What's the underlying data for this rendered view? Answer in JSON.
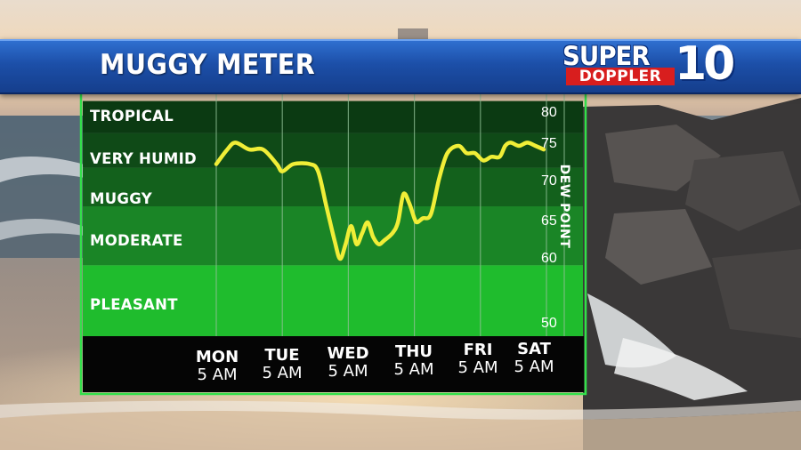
{
  "banner": {
    "title": "MUGGY METER"
  },
  "logo": {
    "word1": "SUPER",
    "word2": "DOPPLER",
    "number": "10"
  },
  "colors": {
    "band_tropical": "#0b3a12",
    "band_very_humid": "#0f4a17",
    "band_muggy": "#13611c",
    "band_moderate": "#1a8526",
    "band_pleasant": "#1fbc2d",
    "border": "#33e04a",
    "line": "#f0ee37",
    "banner": "#1c4fa8",
    "bottom_bar": "#050505"
  },
  "chart_data": {
    "type": "line",
    "ylabel": "DEW POINT",
    "y_ticks": [
      "80",
      "75",
      "70",
      "65",
      "60",
      "50"
    ],
    "ylim": [
      47,
      82
    ],
    "categories_bands": [
      {
        "label": "TROPICAL",
        "from": 77,
        "to": 82
      },
      {
        "label": "VERY HUMID",
        "from": 72,
        "to": 77
      },
      {
        "label": "MUGGY",
        "from": 67,
        "to": 72
      },
      {
        "label": "MODERATE",
        "from": 59,
        "to": 67
      },
      {
        "label": "PLEASANT",
        "from": 47,
        "to": 59
      }
    ],
    "x_ticks": [
      {
        "day": "MON",
        "time": "5 AM",
        "t": 0
      },
      {
        "day": "TUE",
        "time": "5 AM",
        "t": 24
      },
      {
        "day": "WED",
        "time": "5 AM",
        "t": 48
      },
      {
        "day": "THU",
        "time": "5 AM",
        "t": 72
      },
      {
        "day": "FRI",
        "time": "5 AM",
        "t": 96
      },
      {
        "day": "SAT",
        "time": "5 AM",
        "t": 120
      }
    ],
    "series": [
      {
        "x": [
          0,
          4,
          7,
          12,
          17,
          22,
          24,
          28,
          34,
          37,
          40,
          43,
          45,
          47,
          49,
          51,
          53,
          55,
          57,
          59,
          61,
          64,
          66,
          68,
          70,
          72,
          73,
          75,
          78,
          81,
          84,
          88,
          91,
          94,
          97,
          100,
          103,
          105,
          107,
          110,
          113,
          116,
          119
        ],
        "values": [
          72.5,
          74.5,
          75.5,
          74.5,
          74.5,
          72.5,
          71.5,
          72.5,
          72.5,
          71.5,
          67,
          62.5,
          60,
          62,
          64.5,
          62,
          63.5,
          65,
          63,
          62,
          62.5,
          63.5,
          65,
          68.5,
          67.5,
          65.5,
          65,
          65.5,
          66,
          70.5,
          74,
          75,
          74,
          74,
          73,
          73.5,
          73.5,
          75,
          75.5,
          75,
          75.5,
          75,
          74.5
        ]
      }
    ],
    "grid": true
  }
}
